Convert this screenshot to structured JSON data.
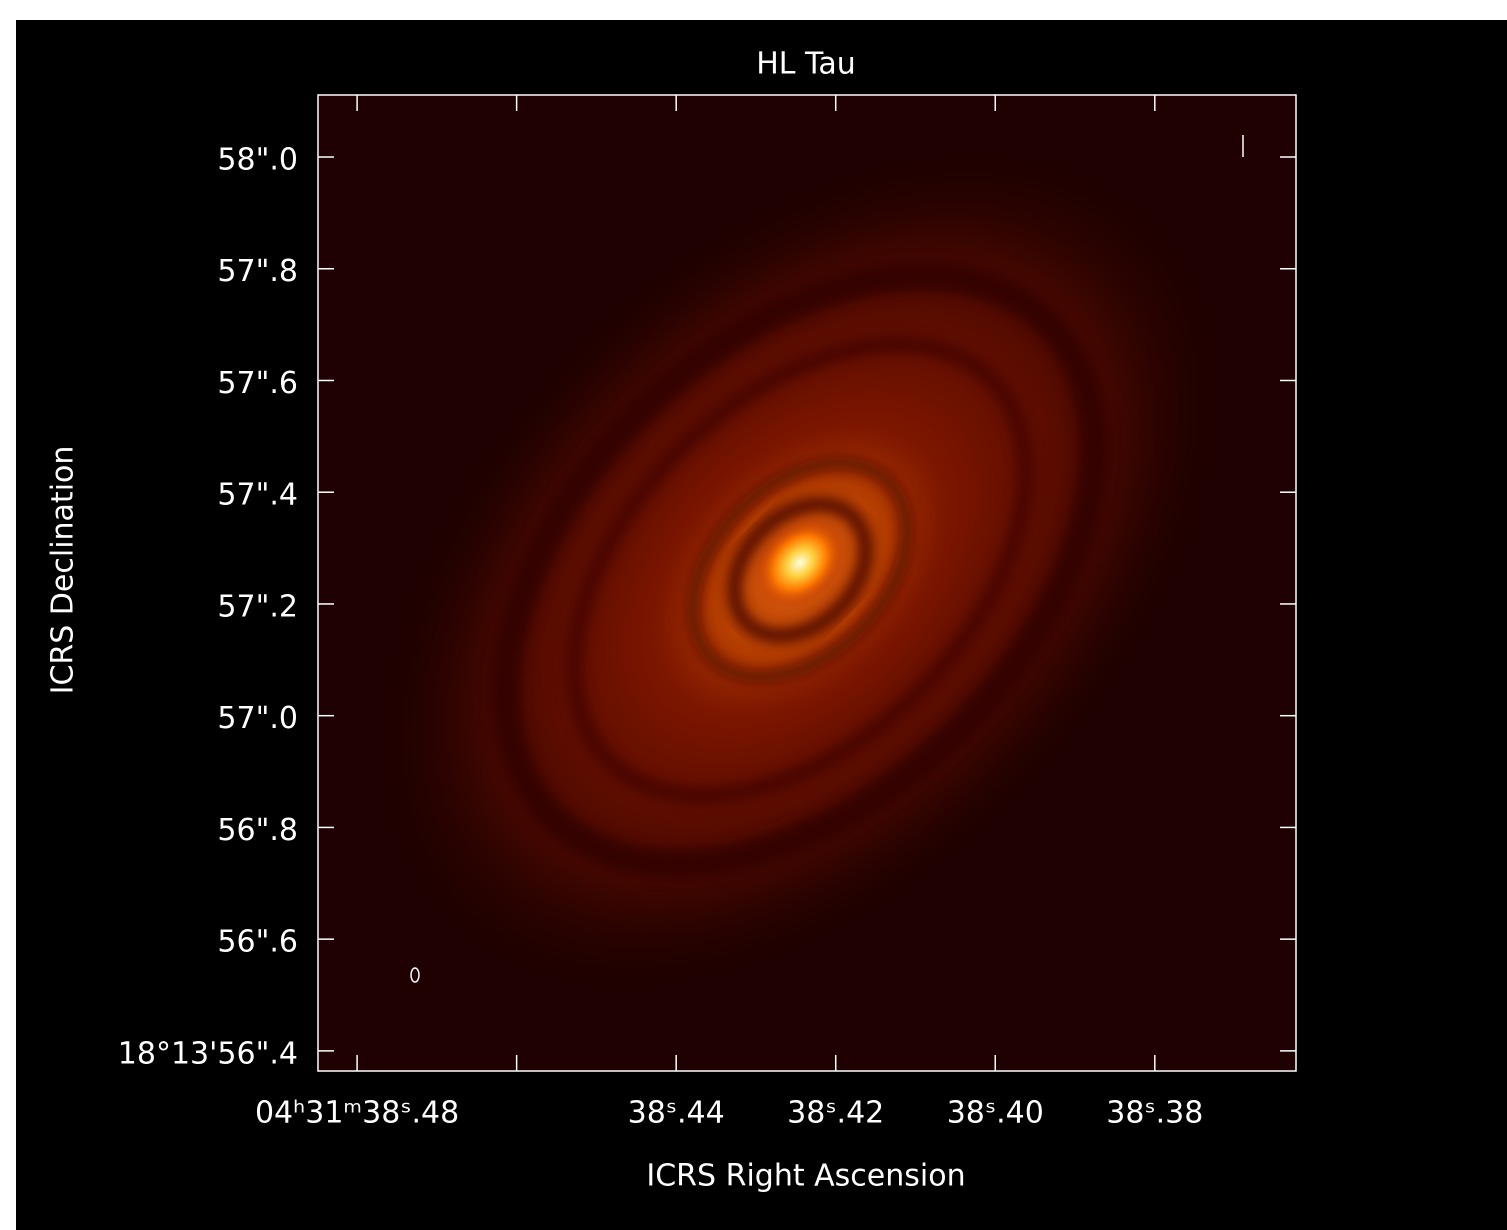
{
  "chart_data": {
    "type": "image",
    "title": "HL Tau",
    "x_label": "ICRS Right Ascension",
    "y_label": "ICRS Declination",
    "xlim": [
      38.4849,
      38.3623
    ],
    "ylim": [
      56.364,
      58.111
    ],
    "xticks": [
      {
        "value": 38.48,
        "label": "04ʰ31ᵐ38ˢ.48"
      },
      {
        "value": 38.46,
        "label": null
      },
      {
        "value": 38.44,
        "label": "38ˢ.44"
      },
      {
        "value": 38.42,
        "label": "38ˢ.42"
      },
      {
        "value": 38.4,
        "label": "38ˢ.40"
      },
      {
        "value": 38.38,
        "label": "38ˢ.38"
      }
    ],
    "yticks": [
      {
        "value": 58.0,
        "label": "58\".0"
      },
      {
        "value": 57.8,
        "label": "57\".8"
      },
      {
        "value": 57.6,
        "label": "57\".6"
      },
      {
        "value": 57.4,
        "label": "57\".4"
      },
      {
        "value": 57.2,
        "label": "57\".2"
      },
      {
        "value": 57.0,
        "label": "57\".0"
      },
      {
        "value": 56.8,
        "label": "56\".8"
      },
      {
        "value": 56.6,
        "label": "56\".6"
      },
      {
        "value": 56.4,
        "label": "18°13'56\".4"
      }
    ],
    "grid": false,
    "axis_color": "#ffffff"
  }
}
